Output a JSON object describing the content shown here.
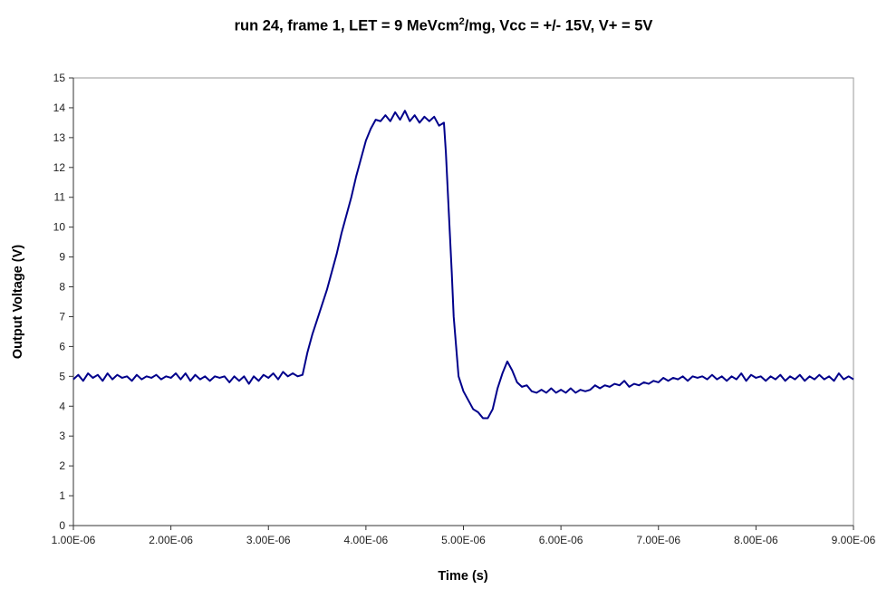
{
  "chart_data": {
    "type": "line",
    "title": {
      "pre": "run 24, frame 1, LET = 9 MeVcm",
      "sup": "2",
      "post": "/mg, Vcc = +/- 15V, V+ = 5V"
    },
    "xlabel": "Time (s)",
    "ylabel": "Output Voltage (V)",
    "xlim": [
      1e-06,
      9e-06
    ],
    "ylim": [
      0,
      15
    ],
    "x_ticks": [
      1e-06,
      2e-06,
      3e-06,
      4e-06,
      5e-06,
      6e-06,
      7e-06,
      8e-06,
      9e-06
    ],
    "x_tick_labels": [
      "1.00E-06",
      "2.00E-06",
      "3.00E-06",
      "4.00E-06",
      "5.00E-06",
      "6.00E-06",
      "7.00E-06",
      "8.00E-06",
      "9.00E-06"
    ],
    "y_ticks": [
      0,
      1,
      2,
      3,
      4,
      5,
      6,
      7,
      8,
      9,
      10,
      11,
      12,
      13,
      14,
      15
    ],
    "y_tick_labels": [
      "0",
      "1",
      "2",
      "3",
      "4",
      "5",
      "6",
      "7",
      "8",
      "9",
      "10",
      "11",
      "12",
      "13",
      "14",
      "15"
    ],
    "grid": false,
    "series": [
      {
        "color": "#00008b",
        "points": [
          [
            1e-06,
            4.9
          ],
          [
            1.05e-06,
            5.05
          ],
          [
            1.1e-06,
            4.85
          ],
          [
            1.15e-06,
            5.1
          ],
          [
            1.2e-06,
            4.95
          ],
          [
            1.25e-06,
            5.05
          ],
          [
            1.3e-06,
            4.85
          ],
          [
            1.35e-06,
            5.1
          ],
          [
            1.4e-06,
            4.9
          ],
          [
            1.45e-06,
            5.05
          ],
          [
            1.5e-06,
            4.95
          ],
          [
            1.55e-06,
            5.0
          ],
          [
            1.6e-06,
            4.85
          ],
          [
            1.65e-06,
            5.05
          ],
          [
            1.7e-06,
            4.9
          ],
          [
            1.75e-06,
            5.0
          ],
          [
            1.8e-06,
            4.95
          ],
          [
            1.85e-06,
            5.05
          ],
          [
            1.9e-06,
            4.9
          ],
          [
            1.95e-06,
            5.0
          ],
          [
            2e-06,
            4.95
          ],
          [
            2.05e-06,
            5.1
          ],
          [
            2.1e-06,
            4.9
          ],
          [
            2.15e-06,
            5.1
          ],
          [
            2.2e-06,
            4.85
          ],
          [
            2.25e-06,
            5.05
          ],
          [
            2.3e-06,
            4.9
          ],
          [
            2.35e-06,
            5.0
          ],
          [
            2.4e-06,
            4.85
          ],
          [
            2.45e-06,
            5.0
          ],
          [
            2.5e-06,
            4.95
          ],
          [
            2.55e-06,
            5.0
          ],
          [
            2.6e-06,
            4.8
          ],
          [
            2.65e-06,
            5.0
          ],
          [
            2.7e-06,
            4.85
          ],
          [
            2.75e-06,
            5.0
          ],
          [
            2.8e-06,
            4.75
          ],
          [
            2.85e-06,
            5.0
          ],
          [
            2.9e-06,
            4.85
          ],
          [
            2.95e-06,
            5.05
          ],
          [
            3e-06,
            4.95
          ],
          [
            3.05e-06,
            5.1
          ],
          [
            3.1e-06,
            4.9
          ],
          [
            3.15e-06,
            5.15
          ],
          [
            3.2e-06,
            5.0
          ],
          [
            3.25e-06,
            5.1
          ],
          [
            3.3e-06,
            5.0
          ],
          [
            3.35e-06,
            5.05
          ],
          [
            3.4e-06,
            5.8
          ],
          [
            3.45e-06,
            6.4
          ],
          [
            3.5e-06,
            6.9
          ],
          [
            3.55e-06,
            7.4
          ],
          [
            3.6e-06,
            7.9
          ],
          [
            3.65e-06,
            8.5
          ],
          [
            3.7e-06,
            9.1
          ],
          [
            3.75e-06,
            9.8
          ],
          [
            3.8e-06,
            10.4
          ],
          [
            3.85e-06,
            11.0
          ],
          [
            3.9e-06,
            11.7
          ],
          [
            3.95e-06,
            12.3
          ],
          [
            4e-06,
            12.9
          ],
          [
            4.05e-06,
            13.3
          ],
          [
            4.1e-06,
            13.6
          ],
          [
            4.15e-06,
            13.55
          ],
          [
            4.2e-06,
            13.75
          ],
          [
            4.25e-06,
            13.55
          ],
          [
            4.3e-06,
            13.85
          ],
          [
            4.35e-06,
            13.6
          ],
          [
            4.4e-06,
            13.9
          ],
          [
            4.45e-06,
            13.55
          ],
          [
            4.5e-06,
            13.75
          ],
          [
            4.55e-06,
            13.5
          ],
          [
            4.6e-06,
            13.7
          ],
          [
            4.65e-06,
            13.55
          ],
          [
            4.7e-06,
            13.7
          ],
          [
            4.75e-06,
            13.4
          ],
          [
            4.8e-06,
            13.5
          ],
          [
            4.82e-06,
            12.5
          ],
          [
            4.85e-06,
            10.5
          ],
          [
            4.88e-06,
            8.5
          ],
          [
            4.9e-06,
            7.0
          ],
          [
            4.93e-06,
            5.8
          ],
          [
            4.95e-06,
            5.0
          ],
          [
            5e-06,
            4.5
          ],
          [
            5.05e-06,
            4.2
          ],
          [
            5.1e-06,
            3.9
          ],
          [
            5.15e-06,
            3.8
          ],
          [
            5.2e-06,
            3.6
          ],
          [
            5.25e-06,
            3.6
          ],
          [
            5.3e-06,
            3.9
          ],
          [
            5.35e-06,
            4.6
          ],
          [
            5.4e-06,
            5.1
          ],
          [
            5.45e-06,
            5.5
          ],
          [
            5.5e-06,
            5.2
          ],
          [
            5.55e-06,
            4.8
          ],
          [
            5.6e-06,
            4.65
          ],
          [
            5.65e-06,
            4.7
          ],
          [
            5.7e-06,
            4.5
          ],
          [
            5.75e-06,
            4.45
          ],
          [
            5.8e-06,
            4.55
          ],
          [
            5.85e-06,
            4.45
          ],
          [
            5.9e-06,
            4.6
          ],
          [
            5.95e-06,
            4.45
          ],
          [
            6e-06,
            4.55
          ],
          [
            6.05e-06,
            4.45
          ],
          [
            6.1e-06,
            4.6
          ],
          [
            6.15e-06,
            4.45
          ],
          [
            6.2e-06,
            4.55
          ],
          [
            6.25e-06,
            4.5
          ],
          [
            6.3e-06,
            4.55
          ],
          [
            6.35e-06,
            4.7
          ],
          [
            6.4e-06,
            4.6
          ],
          [
            6.45e-06,
            4.7
          ],
          [
            6.5e-06,
            4.65
          ],
          [
            6.55e-06,
            4.75
          ],
          [
            6.6e-06,
            4.7
          ],
          [
            6.65e-06,
            4.85
          ],
          [
            6.7e-06,
            4.65
          ],
          [
            6.75e-06,
            4.75
          ],
          [
            6.8e-06,
            4.7
          ],
          [
            6.85e-06,
            4.8
          ],
          [
            6.9e-06,
            4.75
          ],
          [
            6.95e-06,
            4.85
          ],
          [
            7e-06,
            4.8
          ],
          [
            7.05e-06,
            4.95
          ],
          [
            7.1e-06,
            4.85
          ],
          [
            7.15e-06,
            4.95
          ],
          [
            7.2e-06,
            4.9
          ],
          [
            7.25e-06,
            5.0
          ],
          [
            7.3e-06,
            4.85
          ],
          [
            7.35e-06,
            5.0
          ],
          [
            7.4e-06,
            4.95
          ],
          [
            7.45e-06,
            5.0
          ],
          [
            7.5e-06,
            4.9
          ],
          [
            7.55e-06,
            5.05
          ],
          [
            7.6e-06,
            4.9
          ],
          [
            7.65e-06,
            5.0
          ],
          [
            7.7e-06,
            4.85
          ],
          [
            7.75e-06,
            5.0
          ],
          [
            7.8e-06,
            4.9
          ],
          [
            7.85e-06,
            5.1
          ],
          [
            7.9e-06,
            4.85
          ],
          [
            7.95e-06,
            5.05
          ],
          [
            8e-06,
            4.95
          ],
          [
            8.05e-06,
            5.0
          ],
          [
            8.1e-06,
            4.85
          ],
          [
            8.15e-06,
            5.0
          ],
          [
            8.2e-06,
            4.9
          ],
          [
            8.25e-06,
            5.05
          ],
          [
            8.3e-06,
            4.85
          ],
          [
            8.35e-06,
            5.0
          ],
          [
            8.4e-06,
            4.9
          ],
          [
            8.45e-06,
            5.05
          ],
          [
            8.5e-06,
            4.85
          ],
          [
            8.55e-06,
            5.0
          ],
          [
            8.6e-06,
            4.9
          ],
          [
            8.65e-06,
            5.05
          ],
          [
            8.7e-06,
            4.9
          ],
          [
            8.75e-06,
            5.0
          ],
          [
            8.8e-06,
            4.85
          ],
          [
            8.85e-06,
            5.1
          ],
          [
            8.9e-06,
            4.9
          ],
          [
            8.95e-06,
            5.0
          ],
          [
            9e-06,
            4.9
          ]
        ]
      }
    ]
  }
}
